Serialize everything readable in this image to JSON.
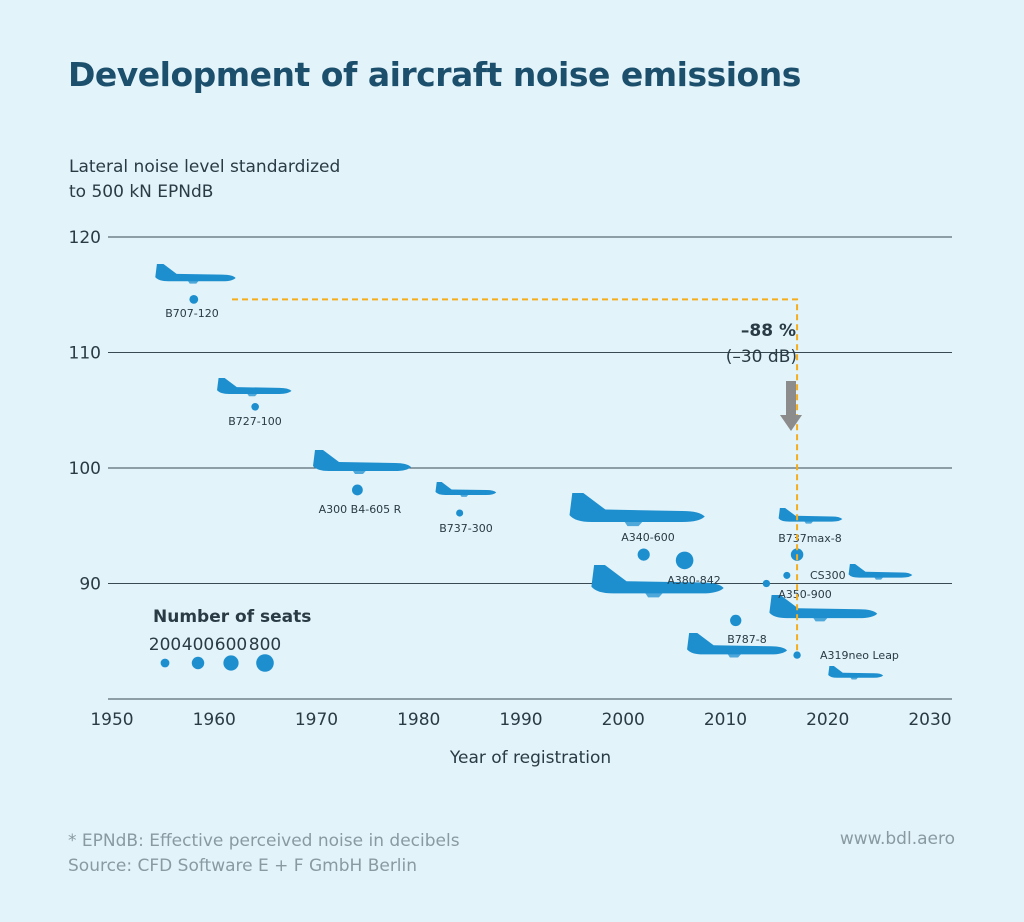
{
  "title": "Development of aircraft noise emissions",
  "ylabel_lines": [
    "Lateral noise level standardized",
    "to 500 kN EPNdB"
  ],
  "xlabel": "Year of registration",
  "footnote_lines": [
    "* EPNdB: Effective perceived noise in decibels",
    "  Source: CFD Software E + F GmbH Berlin"
  ],
  "source_url": "www.bdl.aero",
  "colors": {
    "aircraft": "#1d8fcf",
    "accent": "#f5ad1b",
    "arrow": "#8c8c8c",
    "gridline": "#3a4a52"
  },
  "chart_data": {
    "type": "scatter",
    "x_ticks": [
      1950,
      1960,
      1970,
      1980,
      1990,
      2000,
      2010,
      2020,
      2030
    ],
    "y_ticks": [
      120,
      110,
      100,
      90
    ],
    "xlim": [
      1950,
      2030
    ],
    "ylim": [
      80,
      120
    ],
    "grid": true,
    "points": [
      {
        "label": "B707-120",
        "year": 1958,
        "noise": 114.6,
        "seats": 200
      },
      {
        "label": "B727-100",
        "year": 1964,
        "noise": 105.3,
        "seats": 150
      },
      {
        "label": "A300 B4-605 R",
        "year": 1974,
        "noise": 98.1,
        "seats": 300
      },
      {
        "label": "B737-300",
        "year": 1984,
        "noise": 96.1,
        "seats": 130
      },
      {
        "label": "A340-600",
        "year": 2002,
        "noise": 92.5,
        "seats": 380
      },
      {
        "label": "A380-842",
        "year": 2006,
        "noise": 92.0,
        "seats": 800
      },
      {
        "label": "B737max-8",
        "year": 2017,
        "noise": 92.5,
        "seats": 400
      },
      {
        "label": "CS300",
        "year": 2016,
        "noise": 90.7,
        "seats": 130
      },
      {
        "label": "A350-900",
        "year": 2014,
        "noise": 90.0,
        "seats": 140
      },
      {
        "label": "B787-8",
        "year": 2011,
        "noise": 86.8,
        "seats": 330
      },
      {
        "label": "A319neo Leap",
        "year": 2017,
        "noise": 83.8,
        "seats": 140
      }
    ],
    "annotation": {
      "percent": "–88 %",
      "db": "(–30 dB)"
    },
    "legend": {
      "title": "Number of seats",
      "entries": [
        {
          "label": "200",
          "seats": 200
        },
        {
          "label": "400",
          "seats": 400
        },
        {
          "label": "600",
          "seats": 600
        },
        {
          "label": "800",
          "seats": 800
        }
      ]
    }
  }
}
